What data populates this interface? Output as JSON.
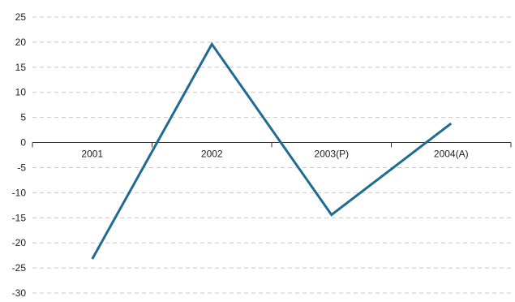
{
  "chart_data": {
    "type": "line",
    "title": "",
    "xlabel": "",
    "ylabel": "",
    "categories": [
      "2001",
      "2002",
      "2003(P)",
      "2004(A)"
    ],
    "series": [
      {
        "values": [
          -23.2,
          19.6,
          -14.4,
          3.8
        ],
        "color": "#1f6b94"
      }
    ],
    "ylim": [
      -30,
      25
    ],
    "yticks": [
      25,
      20,
      15,
      10,
      5,
      0,
      -5,
      -10,
      -15,
      -20,
      -25,
      -30
    ],
    "grid": true,
    "grid_style": "dashed",
    "legend": "none",
    "category_labels_position": "along-zero-axis"
  },
  "colors": {
    "series_line": "#1f6b94",
    "gridline": "#c8c8c8",
    "axis": "#333333",
    "text": "#222222"
  }
}
